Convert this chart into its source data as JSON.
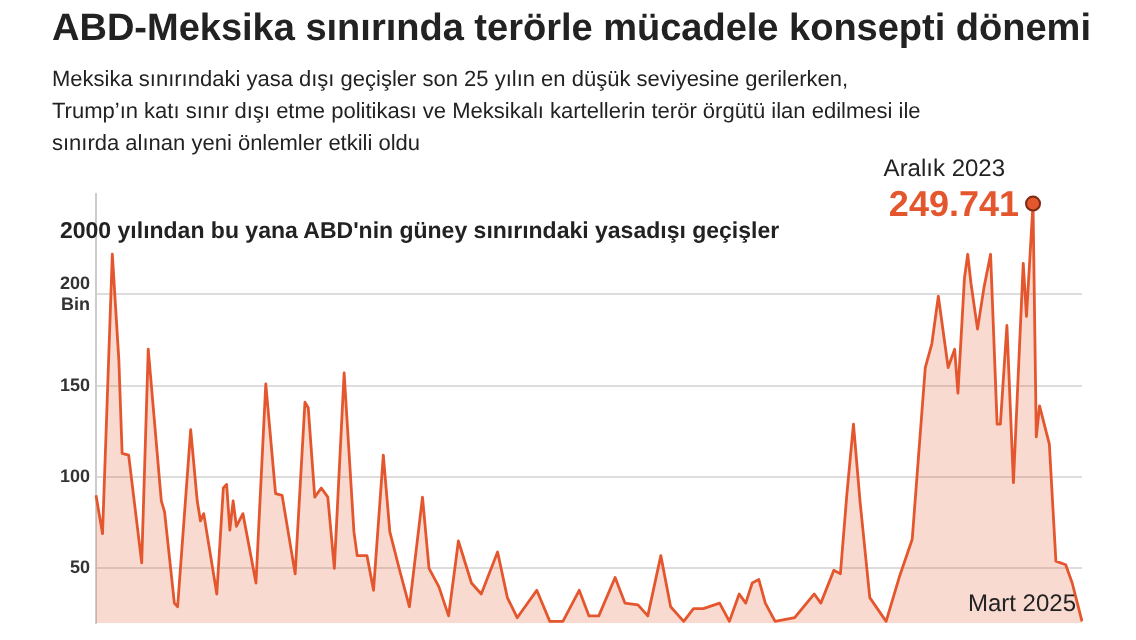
{
  "chart_data": {
    "type": "area",
    "title": "ABD-Meksika sınırında terörle mücadele konsepti dönemi",
    "subtitle": "Meksika sınırındaki yasa dışı geçişler son 25 yılın en düşük seviyesine gerilerken,\nTrump’ın katı sınır dışı etme politikası ve Meksikalı kartellerin terör örgütü ilan edilmesi ile\nsınırda alınan yeni önlemler etkili oldu",
    "ylabel": "2000 yılından bu yana ABD'nin güney sınırındaki yasadışı geçişler",
    "categories": [
      null,
      null,
      null,
      null,
      null,
      null,
      null,
      null,
      null,
      null,
      null,
      null,
      null,
      null,
      null,
      null,
      null,
      null,
      null,
      null,
      null,
      null,
      null,
      null,
      null,
      null,
      null,
      null,
      null,
      null,
      null,
      null,
      null,
      null,
      null,
      null,
      null,
      null,
      null,
      null,
      null,
      null,
      null,
      null,
      null,
      null,
      null,
      null,
      null,
      null,
      null,
      null,
      null,
      null,
      null,
      null,
      null,
      null,
      null,
      null,
      null,
      null,
      null,
      null,
      null,
      null,
      null,
      null,
      null,
      null,
      null,
      null,
      null,
      null,
      null,
      null,
      null,
      null,
      null,
      null,
      null,
      null,
      null,
      null,
      null,
      null,
      null,
      null,
      null,
      null,
      null,
      null,
      null,
      null,
      null,
      null,
      null,
      null,
      null,
      null,
      null,
      null,
      null,
      null,
      null,
      null,
      null,
      null,
      null,
      null,
      null,
      null,
      null,
      null,
      null,
      null,
      null,
      null,
      null,
      null,
      null,
      null,
      null,
      null,
      null,
      null,
      null,
      null,
      null,
      null,
      null,
      null,
      null,
      null,
      null,
      null,
      null,
      null,
      null,
      null,
      null,
      null,
      null,
      null,
      null,
      null,
      null,
      null,
      null,
      null,
      null,
      null,
      null,
      null,
      null,
      null,
      null,
      null,
      null,
      null,
      null,
      null,
      null,
      null,
      null,
      null,
      null,
      null,
      null,
      null,
      null,
      null,
      null,
      null,
      null,
      null,
      null,
      null,
      null,
      null,
      null,
      null,
      null,
      null,
      null,
      null,
      null,
      null,
      null,
      null,
      null,
      null,
      null,
      null,
      null,
      null,
      null,
      null,
      null,
      null,
      null,
      null,
      null,
      null,
      null,
      null,
      null,
      null,
      null,
      null,
      null,
      null,
      null,
      null,
      null,
      null,
      null,
      null,
      null,
      null,
      null,
      null,
      null,
      null,
      null,
      null,
      null,
      null,
      null,
      null,
      null,
      null,
      null,
      null,
      null,
      null,
      null,
      null,
      null,
      null,
      null,
      null,
      null,
      null,
      null,
      null,
      null,
      null,
      null,
      null,
      null,
      null,
      null,
      null,
      null,
      null,
      null,
      null,
      null,
      null,
      null,
      null,
      null,
      null,
      null,
      null,
      null,
      null,
      null,
      null,
      null,
      null,
      null,
      null,
      null,
      null,
      null,
      null,
      null,
      null,
      null,
      null,
      null,
      null,
      null,
      null,
      null,
      null,
      null,
      null,
      null,
      null,
      null,
      null,
      null,
      null,
      null,
      null,
      null,
      null,
      null,
      null,
      null
    ],
    "series": [
      {
        "color": "#e4572e",
        "values": [
          90,
          null,
          69,
          null,
          null,
          222,
          null,
          164,
          113,
          null,
          112,
          null,
          null,
          null,
          53,
          null,
          170,
          null,
          null,
          null,
          87,
          81,
          null,
          null,
          31,
          29,
          null,
          null,
          null,
          126,
          null,
          87,
          76,
          80,
          null,
          null,
          null,
          36,
          null,
          94,
          96,
          71,
          87,
          73,
          null,
          80,
          null,
          null,
          null,
          42,
          null,
          null,
          151,
          null,
          null,
          91,
          null,
          90,
          null,
          null,
          null,
          47,
          null,
          null,
          141,
          138,
          null,
          89,
          null,
          94,
          null,
          89,
          null,
          50,
          null,
          null,
          157,
          null,
          null,
          70,
          57,
          null,
          null,
          57,
          null,
          38,
          null,
          null,
          112,
          null,
          70,
          null,
          null,
          49,
          null,
          null,
          29,
          null,
          null,
          null,
          89,
          null,
          50,
          null,
          null,
          40,
          null,
          null,
          24,
          null,
          null,
          65,
          null,
          null,
          null,
          42,
          null,
          null,
          36,
          null,
          null,
          null,
          null,
          59,
          null,
          null,
          34,
          null,
          null,
          23,
          null,
          null,
          null,
          null,
          null,
          38,
          null,
          null,
          null,
          21,
          null,
          null,
          null,
          21,
          null,
          null,
          null,
          null,
          38,
          null,
          null,
          24,
          null,
          null,
          24,
          null,
          null,
          null,
          null,
          45,
          null,
          null,
          31,
          null,
          null,
          null,
          30,
          null,
          null,
          24,
          null,
          null,
          null,
          57,
          null,
          null,
          29,
          null,
          null,
          null,
          21,
          null,
          null,
          28,
          null,
          null,
          28,
          null,
          null,
          null,
          null,
          31,
          null,
          null,
          21,
          null,
          null,
          36,
          null,
          31,
          null,
          42,
          null,
          44,
          null,
          31,
          null,
          null,
          21,
          null,
          null,
          null,
          null,
          null,
          23,
          null,
          null,
          null,
          null,
          null,
          36,
          null,
          31,
          null,
          null,
          null,
          49,
          null,
          47,
          null,
          91,
          null,
          129,
          null,
          87,
          null,
          null,
          34,
          null,
          null,
          null,
          null,
          21,
          null,
          null,
          null,
          45,
          null,
          null,
          null,
          66,
          null,
          null,
          null,
          160,
          null,
          173,
          null,
          199,
          null,
          null,
          160,
          null,
          170,
          146,
          null,
          209,
          222,
          206,
          null,
          181,
          null,
          204,
          null,
          222,
          null,
          129,
          129,
          null,
          183,
          null,
          97,
          null,
          null,
          217,
          188,
          null,
          249.741,
          122,
          139,
          null,
          null,
          118,
          null,
          54,
          null,
          null,
          52,
          null,
          42,
          null,
          null,
          21
        ],
        "value_labels": [
          null,
          null,
          null,
          null,
          null,
          null,
          null,
          null,
          null,
          null,
          null,
          null,
          null,
          null,
          null,
          null,
          null,
          null,
          null,
          null,
          null,
          null,
          null,
          null,
          null,
          null,
          null,
          null,
          null,
          null,
          null,
          null,
          null,
          null,
          null,
          null,
          null,
          null,
          null,
          null,
          null,
          null,
          null,
          null,
          null,
          null,
          null,
          null,
          null,
          null,
          null,
          null,
          null,
          null,
          null,
          null,
          null,
          null,
          null,
          null,
          null,
          null,
          null,
          null,
          null,
          null,
          null,
          null,
          null,
          null,
          null,
          null,
          null,
          null,
          null,
          null,
          null,
          null,
          null,
          null,
          null,
          null,
          null,
          null,
          null,
          null,
          null,
          null,
          null,
          null,
          null,
          null,
          null,
          null,
          null,
          null,
          null,
          null,
          null,
          null,
          null,
          null,
          null,
          null,
          null,
          null,
          null,
          null,
          null,
          null,
          null,
          null,
          null,
          null,
          null,
          null,
          null,
          null,
          null,
          null,
          null,
          null,
          null,
          null,
          null,
          null,
          null,
          null,
          null,
          null,
          null,
          null,
          null,
          null,
          null,
          null,
          null,
          null,
          null,
          null,
          null,
          null,
          null,
          null,
          null,
          null,
          null,
          null,
          null,
          null,
          null,
          null,
          null,
          null,
          null,
          null,
          null,
          null,
          null,
          null,
          null,
          null,
          null,
          null,
          null,
          null,
          null,
          null,
          null,
          null,
          null,
          null,
          null,
          null,
          null,
          null,
          null,
          null,
          null,
          null,
          null,
          null,
          null,
          null,
          null,
          null,
          null,
          null,
          null,
          null,
          null,
          null,
          null,
          null,
          null,
          null,
          null,
          null,
          null,
          null,
          null,
          null,
          null,
          null,
          null,
          null,
          null,
          null,
          null,
          null,
          null,
          null,
          null,
          null,
          null,
          null,
          null,
          null,
          null,
          null,
          null,
          null,
          null,
          null,
          null,
          null,
          null,
          null,
          null,
          null,
          null,
          null,
          null,
          null,
          null,
          null,
          null,
          null,
          null,
          null,
          null,
          null,
          null,
          null,
          null,
          null,
          null,
          null,
          null,
          null,
          null,
          null,
          null,
          null,
          null,
          null,
          null,
          null,
          null,
          null,
          null,
          null,
          null,
          null,
          null,
          null,
          null,
          null,
          null,
          null,
          null,
          null,
          null,
          null,
          null,
          null,
          null,
          null,
          null,
          null,
          null,
          null,
          null,
          null,
          null,
          null,
          null,
          "249.741",
          null,
          null,
          null,
          null,
          null,
          null,
          null,
          null,
          null,
          null,
          null,
          null,
          null,
          null,
          null
        ]
      }
    ],
    "ylim": [
      20,
      255
    ],
    "yticks": [
      50,
      100,
      150,
      {
        "value": 200,
        "label": "200\nBin"
      }
    ],
    "tick_labels": "y",
    "grid": "y",
    "annotations": [
      "Aralık 2023",
      "Mart 2025"
    ]
  }
}
